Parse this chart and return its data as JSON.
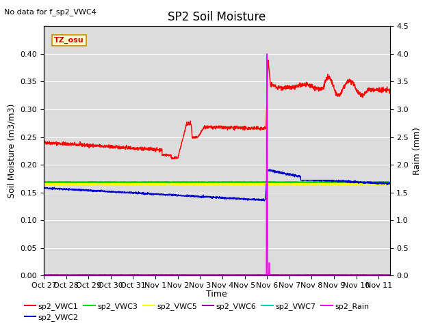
{
  "title": "SP2 Soil Moisture",
  "top_left_text": "No data for f_sp2_VWC4",
  "xlabel": "Time",
  "ylabel_left": "Soil Moisture (m3/m3)",
  "ylabel_right": "Raim (mm)",
  "tz_label": "TZ_osu",
  "ylim_left": [
    0,
    0.45
  ],
  "ylim_right": [
    0,
    4.5
  ],
  "xtick_labels": [
    "Oct 27",
    "Oct 28",
    "Oct 29",
    "Oct 30",
    "Oct 31",
    "Nov 1",
    "Nov 2",
    "Nov 3",
    "Nov 4",
    "Nov 5",
    "Nov 6",
    "Nov 7",
    "Nov 8",
    "Nov 9",
    "Nov 10",
    "Nov 11"
  ],
  "bg_color": "#dcdcdc",
  "legend": [
    {
      "label": "sp2_VWC1",
      "color": "#ff0000"
    },
    {
      "label": "sp2_VWC2",
      "color": "#0000cc"
    },
    {
      "label": "sp2_VWC3",
      "color": "#00dd00"
    },
    {
      "label": "sp2_VWC5",
      "color": "#ffff00"
    },
    {
      "label": "sp2_VWC6",
      "color": "#9900aa"
    },
    {
      "label": "sp2_VWC7",
      "color": "#00cccc"
    },
    {
      "label": "sp2_Rain",
      "color": "#ff00ff"
    }
  ]
}
